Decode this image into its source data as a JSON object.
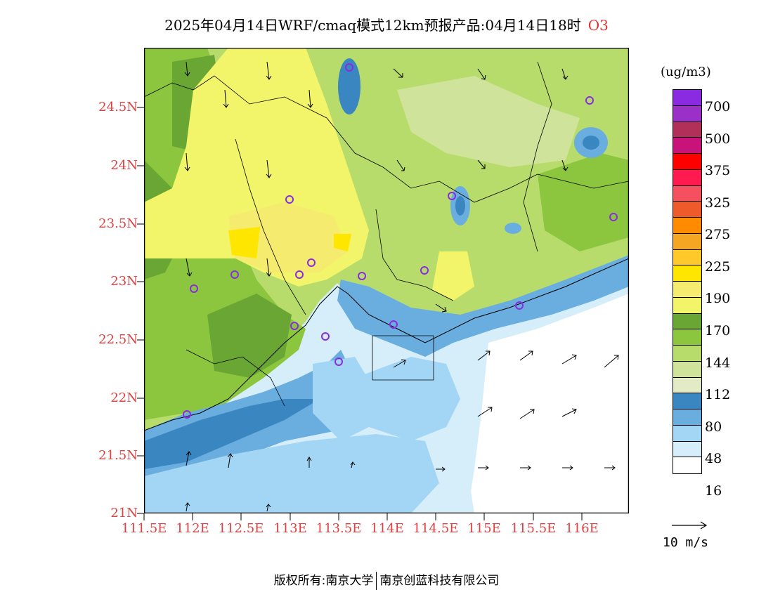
{
  "header": {
    "title": "2025年04月14日WRF/cmaq模式12km预报产品:04月14日18时",
    "species": "O3"
  },
  "map": {
    "x_ticks": [
      "111.5E",
      "112E",
      "112.5E",
      "113E",
      "113.5E",
      "114E",
      "114.5E",
      "115E",
      "115.5E",
      "116E"
    ],
    "y_ticks": [
      "24.5N",
      "24N",
      "23.5N",
      "23N",
      "22.5N",
      "22N",
      "21.5N",
      "21N"
    ]
  },
  "legend": {
    "unit": "(ug/m3)",
    "labels": [
      "700",
      "500",
      "375",
      "325",
      "275",
      "225",
      "190",
      "170",
      "144",
      "112",
      "80",
      "48",
      "16"
    ],
    "colors": [
      "#8a2be2",
      "#9b30c8",
      "#b0305a",
      "#c8137a",
      "#ff0000",
      "#ff1a50",
      "#f5505f",
      "#ee5a2a",
      "#ff8c00",
      "#f5a623",
      "#ffc92a",
      "#ffe600",
      "#f5eb6e",
      "#f2f56a",
      "#6aa634",
      "#8cc63f",
      "#b8dc6c",
      "#cfe39a",
      "#e2ebc6",
      "#3a86c0",
      "#6aaee0",
      "#a3d6f5",
      "#d6eefa",
      "#ffffff"
    ],
    "ref_vector_label": "10 m/s"
  },
  "footer": {
    "copyright_label": "版权所有:南京大学",
    "org": "南京创蓝科技有限公司"
  }
}
